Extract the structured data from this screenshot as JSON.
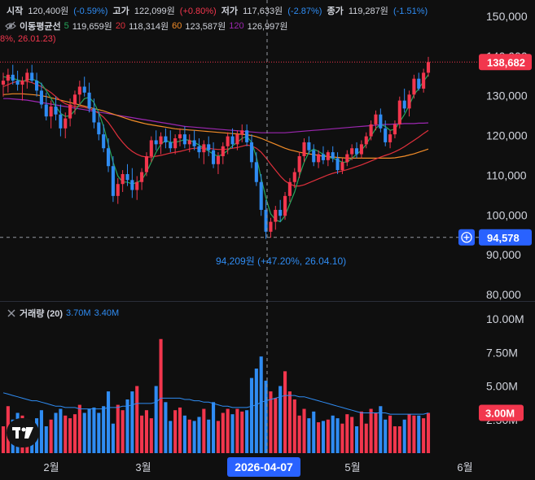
{
  "header": {
    "open_label": "시작",
    "open_value": "120,400원",
    "open_change": "(-0.59%)",
    "high_label": "고가",
    "high_value": "122,099원",
    "high_change": "(+0.80%)",
    "low_label": "저가",
    "low_value": "117,633원",
    "low_change": "(-2.87%)",
    "close_label": "종가",
    "close_value": "119,287원",
    "close_change": "(-1.51%)"
  },
  "ma_legend": {
    "title": "이동평균선",
    "p5": "5",
    "v5": "119,659원",
    "p20": "20",
    "v20": "118,314원",
    "p60": "60",
    "v60": "123,587원",
    "p120": "120",
    "v120": "126,997원"
  },
  "cut_text": "8%, 26.01.23)",
  "price_axis": {
    "ticks": [
      "150,000",
      "140,000",
      "130,000",
      "120,000",
      "110,000",
      "100,000",
      "90,000",
      "80,000"
    ],
    "current_price": "138,682",
    "cursor_price": "94,578"
  },
  "low_annotation": "94,209원 (+47.20%, 26.04.10)",
  "volume": {
    "label": "거래량 (20)",
    "v1": "3.70M",
    "v2": "3.40M",
    "ticks": [
      "10.00M",
      "7.50M",
      "5.00M",
      "2.50M"
    ],
    "current": "3.00M"
  },
  "time_axis": {
    "labels": [
      "2월",
      "3월",
      "5월",
      "6월"
    ],
    "cursor_date": "2026-04-07"
  },
  "colors": {
    "up": "#f2364d",
    "down": "#2f8cf3",
    "ma5": "#26a65b",
    "ma20": "#e0303c",
    "ma60": "#f28c28",
    "ma120": "#9c27b0",
    "vol_ma": "#2f8cf3"
  },
  "chart_data": [
    {
      "type": "candlestick",
      "y_axis_range": [
        80000,
        152000
      ],
      "ohlc": [
        [
          133000,
          136000,
          130000,
          134000
        ],
        [
          134000,
          137000,
          131000,
          135500
        ],
        [
          135500,
          138000,
          133000,
          134000
        ],
        [
          134000,
          136500,
          131500,
          133000
        ],
        [
          133000,
          135000,
          129000,
          134000
        ],
        [
          134000,
          137000,
          132000,
          136000
        ],
        [
          136000,
          138000,
          133500,
          134000
        ],
        [
          134000,
          136000,
          130000,
          131500
        ],
        [
          131500,
          133500,
          127000,
          128000
        ],
        [
          128000,
          131000,
          124000,
          125000
        ],
        [
          125000,
          129000,
          122000,
          127500
        ],
        [
          127500,
          130000,
          124000,
          125500
        ],
        [
          125500,
          128000,
          120000,
          122000
        ],
        [
          122000,
          126000,
          119500,
          124500
        ],
        [
          124500,
          129500,
          122500,
          128000
        ],
        [
          128000,
          131500,
          125500,
          130500
        ],
        [
          130500,
          134000,
          128000,
          132500
        ],
        [
          132500,
          135000,
          130000,
          131000
        ],
        [
          131000,
          133500,
          126000,
          127000
        ],
        [
          127000,
          129500,
          122000,
          123500
        ],
        [
          123500,
          126000,
          119000,
          120500
        ],
        [
          120500,
          123000,
          116000,
          117000
        ],
        [
          117000,
          119500,
          111000,
          112500
        ],
        [
          112500,
          115000,
          103500,
          105000
        ],
        [
          105000,
          109500,
          103000,
          108000
        ],
        [
          108000,
          111500,
          106000,
          110500
        ],
        [
          110500,
          113000,
          107500,
          109000
        ],
        [
          109000,
          112000,
          104500,
          106500
        ],
        [
          106500,
          110000,
          104000,
          108500
        ],
        [
          108500,
          112000,
          106500,
          111000
        ],
        [
          111000,
          116000,
          110000,
          115000
        ],
        [
          115000,
          120000,
          113500,
          119000
        ],
        [
          119000,
          121500,
          116500,
          118000
        ],
        [
          118000,
          121000,
          115500,
          120000
        ],
        [
          120000,
          122000,
          117000,
          118500
        ],
        [
          118500,
          121500,
          116000,
          117000
        ],
        [
          117000,
          120500,
          115500,
          119500
        ],
        [
          119500,
          122000,
          117500,
          120500
        ],
        [
          120500,
          122500,
          117000,
          118000
        ],
        [
          118000,
          120500,
          116000,
          119000
        ],
        [
          119000,
          121500,
          116500,
          117500
        ],
        [
          117500,
          119500,
          114500,
          116000
        ],
        [
          116000,
          119000,
          113000,
          118000
        ],
        [
          118000,
          120000,
          115000,
          116500
        ],
        [
          116500,
          118500,
          112000,
          113000
        ],
        [
          113000,
          116000,
          110500,
          115000
        ],
        [
          115000,
          118500,
          113000,
          117500
        ],
        [
          117500,
          121000,
          115500,
          120000
        ],
        [
          120000,
          122000,
          117000,
          118000
        ],
        [
          118000,
          121500,
          116500,
          120500
        ],
        [
          120500,
          123000,
          118500,
          121500
        ],
        [
          121500,
          123000,
          117500,
          118500
        ],
        [
          118500,
          120500,
          112000,
          113500
        ],
        [
          113500,
          116000,
          107500,
          108500
        ],
        [
          108500,
          110500,
          100000,
          101500
        ],
        [
          101500,
          104000,
          94209,
          96000
        ],
        [
          96000,
          99500,
          94500,
          98500
        ],
        [
          98500,
          102500,
          96500,
          101500
        ],
        [
          101500,
          104000,
          98500,
          100000
        ],
        [
          100000,
          106000,
          99000,
          105000
        ],
        [
          105000,
          109500,
          103500,
          108500
        ],
        [
          108500,
          112000,
          107000,
          111000
        ],
        [
          111000,
          116000,
          109500,
          115000
        ],
        [
          115000,
          119500,
          113500,
          118500
        ],
        [
          118500,
          120000,
          115500,
          116500
        ],
        [
          116500,
          118000,
          112500,
          113500
        ],
        [
          113500,
          116500,
          112000,
          115500
        ],
        [
          115500,
          117500,
          113000,
          114000
        ],
        [
          114000,
          116500,
          112500,
          116000
        ],
        [
          116000,
          117500,
          113500,
          114500
        ],
        [
          114500,
          116000,
          110500,
          111500
        ],
        [
          111500,
          114500,
          110500,
          113500
        ],
        [
          113500,
          116500,
          112500,
          115500
        ],
        [
          115500,
          118000,
          114000,
          117000
        ],
        [
          117000,
          118500,
          114500,
          115500
        ],
        [
          115500,
          119000,
          114500,
          118000
        ],
        [
          118000,
          121000,
          117000,
          120000
        ],
        [
          120000,
          124000,
          119000,
          123000
        ],
        [
          123000,
          126500,
          121500,
          125500
        ],
        [
          125500,
          127000,
          121000,
          122000
        ],
        [
          122000,
          124000,
          117500,
          118500
        ],
        [
          118500,
          121500,
          117000,
          120500
        ],
        [
          120500,
          124000,
          119500,
          123000
        ],
        [
          123000,
          130000,
          122000,
          129000
        ],
        [
          129000,
          132000,
          126000,
          127000
        ],
        [
          127000,
          131500,
          125000,
          130500
        ],
        [
          130500,
          135500,
          129500,
          134500
        ],
        [
          134500,
          136000,
          131500,
          132000
        ],
        [
          132000,
          137000,
          131000,
          136000
        ],
        [
          136000,
          140000,
          135000,
          138682
        ]
      ],
      "ma": {
        "ma5": [
          135000,
          134800,
          134600,
          134200,
          133800,
          134200,
          134400,
          134000,
          133200,
          131500,
          129500,
          127500,
          125800,
          125000,
          125200,
          126500,
          128000,
          129500,
          129800,
          128500,
          126000,
          122500,
          118000,
          113500,
          110000,
          108500,
          108500,
          108000,
          108400,
          109000,
          111000,
          113500,
          116000,
          118000,
          119000,
          118500,
          118500,
          118800,
          119200,
          119000,
          118500,
          117800,
          117000,
          116300,
          115500,
          115000,
          115500,
          116500,
          117600,
          118500,
          119500,
          120000,
          118500,
          114800,
          109500,
          104500,
          100500,
          99000,
          98500,
          100000,
          103000,
          106000,
          110000,
          113500,
          116000,
          116800,
          116200,
          115500,
          114700,
          114500,
          114000,
          113500,
          113500,
          114500,
          115500,
          116500,
          118000,
          120000,
          122000,
          123000,
          122500,
          121500,
          121800,
          123600,
          125500,
          127800,
          130500,
          132000,
          133800,
          135500
        ],
        "ma20": [
          132500,
          133000,
          133500,
          133800,
          134000,
          133800,
          133500,
          133000,
          132500,
          131800,
          131000,
          130000,
          129000,
          128200,
          127800,
          127500,
          127500,
          127300,
          127000,
          126500,
          125800,
          124800,
          123500,
          121800,
          120000,
          118500,
          117200,
          116200,
          115500,
          115000,
          114800,
          114800,
          115000,
          115200,
          115500,
          115800,
          116000,
          116200,
          116500,
          116800,
          117000,
          117000,
          117000,
          117000,
          116800,
          116700,
          116700,
          116800,
          117000,
          117200,
          117500,
          117800,
          117600,
          117000,
          116000,
          114600,
          113000,
          111500,
          110000,
          108800,
          108000,
          107500,
          107500,
          107800,
          108300,
          108800,
          109300,
          109800,
          110300,
          110700,
          111000,
          111300,
          111600,
          112000,
          112400,
          112800,
          113300,
          113800,
          114300,
          114800,
          115200,
          115600,
          116100,
          116700,
          117400,
          118200,
          119000,
          119800,
          120700,
          121500
        ],
        "ma60": [
          130500,
          130600,
          130700,
          130700,
          130700,
          130600,
          130500,
          130400,
          130200,
          130000,
          129700,
          129400,
          129100,
          128800,
          128500,
          128200,
          127900,
          127600,
          127300,
          127000,
          126700,
          126400,
          126000,
          125600,
          125200,
          124800,
          124400,
          124000,
          123700,
          123400,
          123100,
          122900,
          122700,
          122500,
          122300,
          122100,
          121900,
          121800,
          121700,
          121600,
          121500,
          121400,
          121300,
          121200,
          121100,
          121000,
          120900,
          120800,
          120700,
          120600,
          120500,
          120400,
          120200,
          119900,
          119500,
          119000,
          118500,
          118000,
          117500,
          117000,
          116600,
          116300,
          116000,
          115800,
          115600,
          115400,
          115200,
          115000,
          114900,
          114800,
          114700,
          114600,
          114500,
          114500,
          114500,
          114500,
          114500,
          114500,
          114500,
          114500,
          114500,
          114500,
          114600,
          114800,
          115000,
          115300,
          115600,
          116000,
          116400,
          116800
        ],
        "ma120": [
          129500,
          129500,
          129400,
          129300,
          129200,
          129100,
          128900,
          128700,
          128500,
          128300,
          128100,
          127900,
          127700,
          127500,
          127300,
          127100,
          126900,
          126700,
          126500,
          126300,
          126100,
          125900,
          125700,
          125500,
          125300,
          125100,
          124900,
          124700,
          124500,
          124300,
          124100,
          123900,
          123700,
          123500,
          123300,
          123100,
          122900,
          122700,
          122500,
          122400,
          122300,
          122200,
          122100,
          122000,
          121900,
          121800,
          121700,
          121600,
          121500,
          121400,
          121300,
          121200,
          121100,
          121000,
          120900,
          120900,
          120900,
          120900,
          120900,
          120900,
          121000,
          121100,
          121200,
          121300,
          121400,
          121500,
          121600,
          121700,
          121800,
          121900,
          122000,
          122100,
          122200,
          122300,
          122400,
          122500,
          122600,
          122700,
          122800,
          122900,
          123000,
          123000,
          123100,
          123100,
          123200,
          123200,
          123200,
          123300,
          123300,
          123400
        ]
      }
    },
    {
      "type": "bar",
      "title": "거래량 (20)",
      "y_axis_range": [
        0,
        11000000
      ],
      "values": [
        2.0,
        3.5,
        2.5,
        3.0,
        2.8,
        2.5,
        2.2,
        2.6,
        3.2,
        2.0,
        2.5,
        3.0,
        3.3,
        2.8,
        2.6,
        2.9,
        3.6,
        3.0,
        3.3,
        3.4,
        3.0,
        3.5,
        4.6,
        2.2,
        3.6,
        3.2,
        4.0,
        4.6,
        5.0,
        2.8,
        3.2,
        2.6,
        5.0,
        8.5,
        3.8,
        2.4,
        3.2,
        3.4,
        2.8,
        2.5,
        2.4,
        2.7,
        3.3,
        2.5,
        3.8,
        2.4,
        3.0,
        3.3,
        2.9,
        3.3,
        3.1,
        3.2,
        5.6,
        6.3,
        7.2,
        5.4,
        4.6,
        4.1,
        5.0,
        6.1,
        4.6,
        4.0,
        2.8,
        3.3,
        2.6,
        3.1,
        2.3,
        2.4,
        2.5,
        2.8,
        2.6,
        2.2,
        2.9,
        2.7,
        2.0,
        3.1,
        2.2,
        3.3,
        3.0,
        3.5,
        2.5,
        2.8,
        2.0,
        2.0,
        2.5,
        2.9,
        2.8,
        2.8,
        2.6,
        3.0
      ],
      "ma20": [
        4.5,
        4.4,
        4.3,
        4.2,
        4.1,
        4.0,
        3.9,
        3.9,
        3.8,
        3.7,
        3.6,
        3.5,
        3.5,
        3.4,
        3.4,
        3.4,
        3.3,
        3.3,
        3.3,
        3.3,
        3.3,
        3.3,
        3.4,
        3.4,
        3.4,
        3.5,
        3.5,
        3.6,
        3.7,
        3.7,
        3.7,
        3.7,
        3.8,
        4.1,
        4.1,
        4.1,
        4.1,
        4.1,
        4.0,
        4.0,
        3.9,
        3.9,
        3.8,
        3.8,
        3.7,
        3.6,
        3.5,
        3.5,
        3.4,
        3.4,
        3.4,
        3.4,
        3.5,
        3.6,
        3.8,
        3.9,
        4.0,
        4.1,
        4.2,
        4.3,
        4.3,
        4.3,
        4.2,
        4.2,
        4.1,
        4.0,
        3.9,
        3.8,
        3.7,
        3.6,
        3.5,
        3.4,
        3.3,
        3.2,
        3.1,
        3.0,
        3.0,
        3.0,
        3.0,
        3.0,
        3.0,
        2.9,
        2.9,
        2.9,
        2.9,
        2.9,
        2.9,
        2.9,
        2.9,
        3.0
      ],
      "unit": "M"
    }
  ]
}
